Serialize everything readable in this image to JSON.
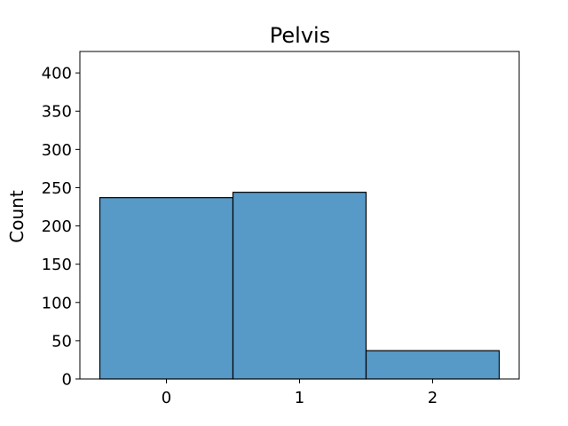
{
  "chart_data": {
    "type": "bar",
    "title": "Pelvis",
    "xlabel": "",
    "ylabel": "Count",
    "categories": [
      "0",
      "1",
      "2"
    ],
    "values": [
      237,
      244,
      37
    ],
    "ylim": [
      0,
      428
    ],
    "yticks": [
      "0",
      "50",
      "100",
      "150",
      "200",
      "250",
      "300",
      "350",
      "400"
    ],
    "grid": false,
    "legend": "none",
    "colors": {
      "bar": "#5799c7",
      "edge": "#000000"
    }
  }
}
